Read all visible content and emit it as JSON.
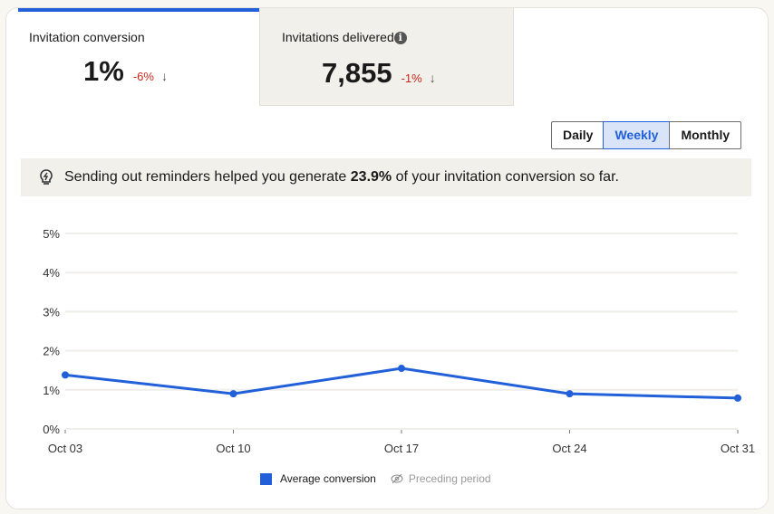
{
  "tabs": [
    {
      "label": "Invitation conversion",
      "value": "1%",
      "delta": "-6%",
      "trend_icon": "arrow-down-icon",
      "active": true
    },
    {
      "label": "Invitations delivered",
      "value": "7,855",
      "delta": "-1%",
      "trend_icon": "arrow-down-icon",
      "info_icon": "info-icon",
      "active": false
    }
  ],
  "period_toggle": {
    "options": [
      "Daily",
      "Weekly",
      "Monthly"
    ],
    "selected": "Weekly"
  },
  "banner": {
    "icon": "lightbulb-icon",
    "prefix": "Sending out reminders helped you generate ",
    "highlight": "23.9%",
    "suffix": " of your invitation conversion so far."
  },
  "legend": {
    "series": "Average conversion",
    "preceding": "Preceding period",
    "preceding_icon": "eye-slash-icon"
  },
  "colors": {
    "accent": "#2160d8",
    "negative": "#c8261d",
    "banner_bg": "#f1f0ea"
  },
  "chart_data": {
    "type": "line",
    "title": "",
    "xlabel": "",
    "ylabel": "",
    "categories": [
      "Oct 03",
      "Oct 10",
      "Oct 17",
      "Oct 24",
      "Oct 31"
    ],
    "series": [
      {
        "name": "Average conversion",
        "values": [
          1.38,
          0.9,
          1.55,
          0.9,
          0.79
        ],
        "color": "#2160d8"
      }
    ],
    "y_ticks": [
      "0%",
      "1%",
      "2%",
      "3%",
      "4%",
      "5%"
    ],
    "ylim": [
      0,
      5
    ],
    "grid": true,
    "legend_position": "bottom"
  }
}
